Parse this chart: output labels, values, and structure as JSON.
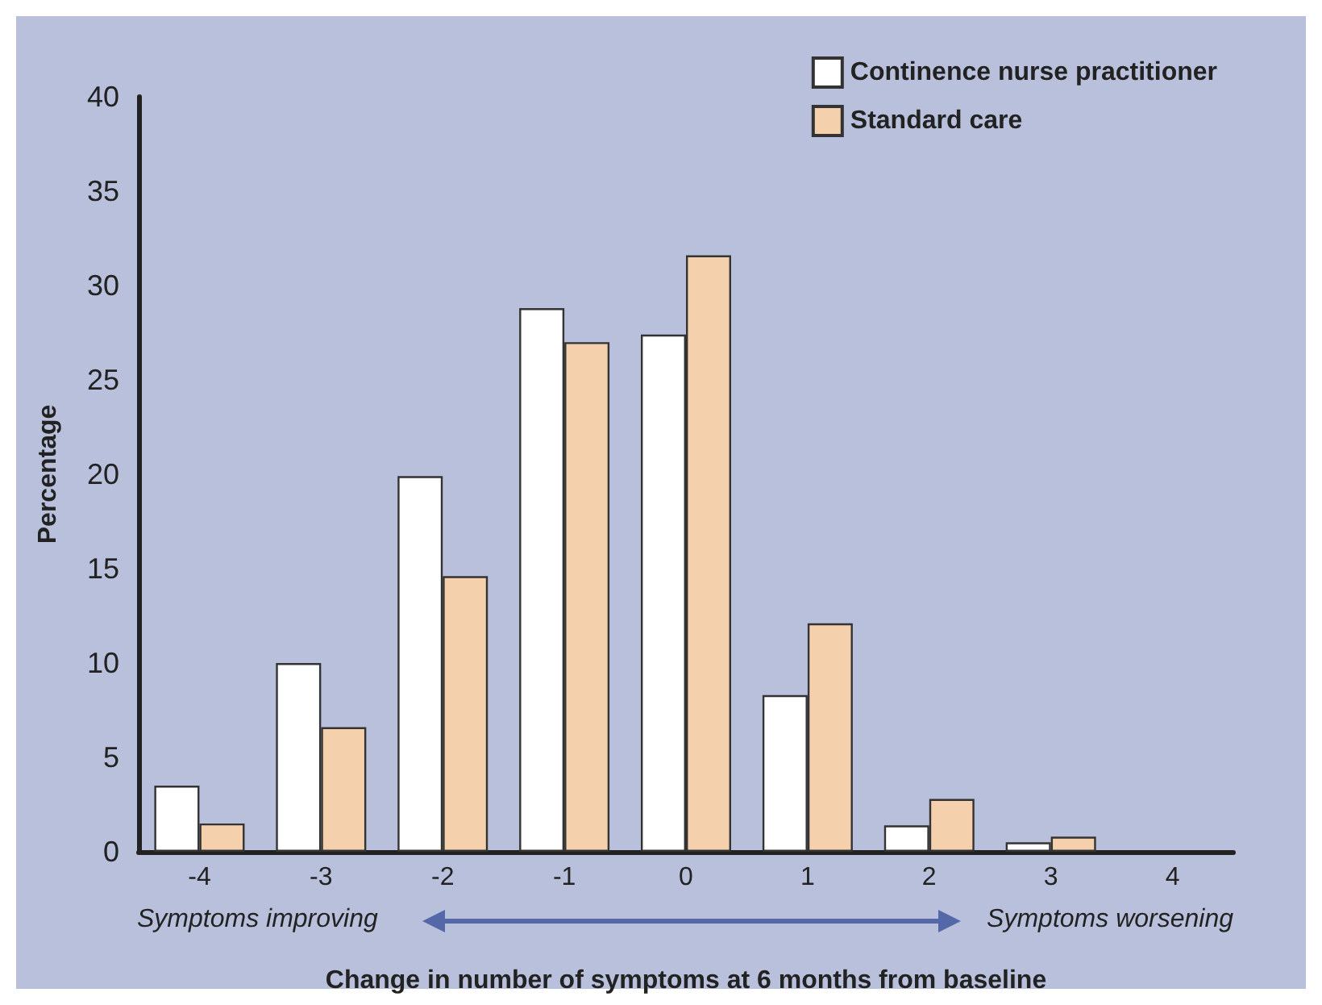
{
  "chart_data": {
    "type": "bar",
    "xlabel": "Change in number of symptoms at 6 months from baseline",
    "ylabel": "Percentage",
    "categories": [
      "-4",
      "-3",
      "-2",
      "-1",
      "0",
      "1",
      "2",
      "3",
      "4"
    ],
    "series": [
      {
        "name": "Continence nurse practitioner",
        "color": "#ffffff",
        "values": [
          3.5,
          10,
          19.9,
          28.8,
          27.4,
          8.3,
          1.4,
          0.5,
          0
        ]
      },
      {
        "name": "Standard care",
        "color": "#f5d0ad",
        "values": [
          1.5,
          6.6,
          14.6,
          27,
          31.6,
          12.1,
          2.8,
          0.8,
          0
        ]
      }
    ],
    "ylim": [
      0,
      40
    ],
    "yticks": [
      0,
      5,
      10,
      15,
      20,
      25,
      30,
      35,
      40
    ],
    "grid": false,
    "legend": "top right",
    "annotations": [
      "Symptoms improving",
      "Symptoms worsening"
    ]
  }
}
